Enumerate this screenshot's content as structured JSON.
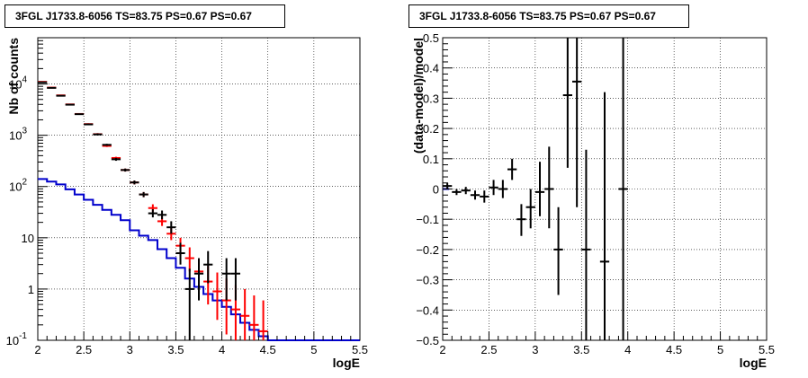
{
  "chart_data": [
    {
      "type": "histogram",
      "title": "3FGL J1733.8-6056 TS=83.75 PS=0.67 PS=0.67",
      "xlabel": "logE",
      "ylabel": "Nb of counts",
      "xlim": [
        2,
        5.5
      ],
      "ylim": [
        0.1,
        80000
      ],
      "yscale": "log",
      "grid": true,
      "xticks": [
        "2",
        "2.5",
        "3",
        "3.5",
        "4",
        "4.5",
        "5",
        "5.5"
      ],
      "yticks": [
        {
          "v": 0.1,
          "label": "10",
          "sup": "-1"
        },
        {
          "v": 1,
          "label": "1",
          "sup": ""
        },
        {
          "v": 10,
          "label": "10",
          "sup": ""
        },
        {
          "v": 100,
          "label": "10",
          "sup": "2"
        },
        {
          "v": 1000,
          "label": "10",
          "sup": "3"
        },
        {
          "v": 10000,
          "label": "10",
          "sup": "4"
        }
      ],
      "series": [
        {
          "color": "#0000cc",
          "kind": "step",
          "edges": [
            2.0,
            2.1,
            2.2,
            2.3,
            2.4,
            2.5,
            2.6,
            2.7,
            2.8,
            2.9,
            3.0,
            3.1,
            3.2,
            3.3,
            3.4,
            3.5,
            3.6,
            3.7,
            3.8,
            3.9,
            4.0,
            4.1,
            4.2,
            4.3,
            4.4,
            4.5,
            5.5
          ],
          "values": [
            140,
            125,
            110,
            88,
            70,
            55,
            44,
            35,
            28,
            22,
            14,
            11,
            9,
            6,
            4,
            2.6,
            1.6,
            1.1,
            0.8,
            0.6,
            0.45,
            0.32,
            0.22,
            0.16,
            0.12,
            0.1
          ]
        },
        {
          "color": "#ff0000",
          "kind": "errorbar",
          "points": [
            {
              "x": 2.05,
              "y": 11000,
              "lo": 10800,
              "hi": 11200
            },
            {
              "x": 2.15,
              "y": 8500,
              "lo": 8350,
              "hi": 8650
            },
            {
              "x": 2.25,
              "y": 6000,
              "lo": 5880,
              "hi": 6120
            },
            {
              "x": 2.35,
              "y": 4000,
              "lo": 3900,
              "hi": 4100
            },
            {
              "x": 2.45,
              "y": 2600,
              "lo": 2520,
              "hi": 2680
            },
            {
              "x": 2.55,
              "y": 1650,
              "lo": 1590,
              "hi": 1710
            },
            {
              "x": 2.65,
              "y": 1050,
              "lo": 1000,
              "hi": 1100
            },
            {
              "x": 2.75,
              "y": 620,
              "lo": 590,
              "hi": 650
            },
            {
              "x": 2.85,
              "y": 360,
              "lo": 340,
              "hi": 380
            },
            {
              "x": 2.95,
              "y": 210,
              "lo": 196,
              "hi": 224
            },
            {
              "x": 3.05,
              "y": 120,
              "lo": 110,
              "hi": 131
            },
            {
              "x": 3.15,
              "y": 70,
              "lo": 62,
              "hi": 78
            },
            {
              "x": 3.25,
              "y": 38,
              "lo": 32,
              "hi": 45
            },
            {
              "x": 3.35,
              "y": 21,
              "lo": 17,
              "hi": 26
            },
            {
              "x": 3.45,
              "y": 12,
              "lo": 9,
              "hi": 16
            },
            {
              "x": 3.55,
              "y": 7,
              "lo": 4.5,
              "hi": 10
            },
            {
              "x": 3.65,
              "y": 4,
              "lo": 2.2,
              "hi": 6.5
            },
            {
              "x": 3.75,
              "y": 2.2,
              "lo": 1.0,
              "hi": 4.0
            },
            {
              "x": 3.85,
              "y": 1.4,
              "lo": 0.5,
              "hi": 2.8
            },
            {
              "x": 3.95,
              "y": 0.9,
              "lo": 0.25,
              "hi": 2.1
            },
            {
              "x": 4.05,
              "y": 0.6,
              "lo": 0.13,
              "hi": 1.6
            },
            {
              "x": 4.15,
              "y": 0.4,
              "lo": 0.1,
              "hi": 1.2
            },
            {
              "x": 4.25,
              "y": 0.3,
              "lo": 0.1,
              "hi": 1.0
            },
            {
              "x": 4.35,
              "y": 0.2,
              "lo": 0.1,
              "hi": 0.75
            },
            {
              "x": 4.45,
              "y": 0.15,
              "lo": 0.1,
              "hi": 0.6
            }
          ]
        },
        {
          "color": "#000000",
          "kind": "errorbar",
          "points": [
            {
              "x": 2.05,
              "y": 10800,
              "lo": 10600,
              "hi": 11000
            },
            {
              "x": 2.15,
              "y": 8400,
              "lo": 8250,
              "hi": 8550
            },
            {
              "x": 2.25,
              "y": 5900,
              "lo": 5780,
              "hi": 6020
            },
            {
              "x": 2.35,
              "y": 3950,
              "lo": 3850,
              "hi": 4050
            },
            {
              "x": 2.45,
              "y": 2580,
              "lo": 2500,
              "hi": 2660
            },
            {
              "x": 2.55,
              "y": 1630,
              "lo": 1570,
              "hi": 1690
            },
            {
              "x": 2.65,
              "y": 1040,
              "lo": 990,
              "hi": 1090
            },
            {
              "x": 2.75,
              "y": 650,
              "lo": 620,
              "hi": 680
            },
            {
              "x": 2.85,
              "y": 340,
              "lo": 318,
              "hi": 362
            },
            {
              "x": 2.95,
              "y": 210,
              "lo": 196,
              "hi": 224
            },
            {
              "x": 3.05,
              "y": 120,
              "lo": 110,
              "hi": 131
            },
            {
              "x": 3.15,
              "y": 70,
              "lo": 62,
              "hi": 78
            },
            {
              "x": 3.25,
              "y": 30,
              "lo": 25,
              "hi": 36
            },
            {
              "x": 3.35,
              "y": 28,
              "lo": 23,
              "hi": 34
            },
            {
              "x": 3.45,
              "y": 16,
              "lo": 12,
              "hi": 21
            },
            {
              "x": 3.55,
              "y": 5,
              "lo": 3,
              "hi": 8
            },
            {
              "x": 3.65,
              "y": 1,
              "lo": 0.1,
              "hi": 2.5
            },
            {
              "x": 3.75,
              "y": 2,
              "lo": 0.6,
              "hi": 4
            },
            {
              "x": 3.85,
              "y": 3,
              "lo": 1.3,
              "hi": 5.5
            },
            {
              "x": 4.05,
              "y": 2,
              "lo": 0.6,
              "hi": 4
            },
            {
              "x": 4.15,
              "y": 2,
              "lo": 0.6,
              "hi": 4
            }
          ]
        }
      ]
    },
    {
      "type": "errorbar",
      "title": "3FGL J1733.8-6056 TS=83.75 PS=0.67 PS=0.67",
      "xlabel": "logE",
      "ylabel": "(data-model)/model",
      "xlim": [
        2,
        5.5
      ],
      "ylim": [
        -0.5,
        0.5
      ],
      "yscale": "linear",
      "grid": true,
      "xticks": [
        "2",
        "2.5",
        "3",
        "3.5",
        "4",
        "4.5",
        "5",
        "5.5"
      ],
      "yticks": [
        "-0.5",
        "-0.4",
        "-0.3",
        "-0.2",
        "-0.1",
        "0",
        "0.1",
        "0.2",
        "0.3",
        "0.4",
        "0.5"
      ],
      "series": [
        {
          "color": "#0000cc",
          "kind": "line",
          "x": [
            2.0,
            2.07
          ],
          "y": [
            0.0,
            0.0
          ]
        },
        {
          "color": "#000000",
          "kind": "errorbar",
          "points": [
            {
              "x": 2.05,
              "y": 0.01,
              "lo": 0.0,
              "hi": 0.02
            },
            {
              "x": 2.15,
              "y": -0.01,
              "lo": -0.02,
              "hi": 0.0
            },
            {
              "x": 2.25,
              "y": -0.005,
              "lo": -0.017,
              "hi": 0.007
            },
            {
              "x": 2.35,
              "y": -0.02,
              "lo": -0.035,
              "hi": -0.005
            },
            {
              "x": 2.45,
              "y": -0.025,
              "lo": -0.045,
              "hi": -0.005
            },
            {
              "x": 2.55,
              "y": 0.005,
              "lo": -0.02,
              "hi": 0.03
            },
            {
              "x": 2.65,
              "y": 0.0,
              "lo": -0.03,
              "hi": 0.03
            },
            {
              "x": 2.75,
              "y": 0.065,
              "lo": 0.03,
              "hi": 0.1
            },
            {
              "x": 2.85,
              "y": -0.1,
              "lo": -0.155,
              "hi": -0.05
            },
            {
              "x": 2.95,
              "y": -0.06,
              "lo": -0.13,
              "hi": 0.0
            },
            {
              "x": 3.05,
              "y": -0.01,
              "lo": -0.09,
              "hi": 0.09
            },
            {
              "x": 3.15,
              "y": 0.0,
              "lo": -0.13,
              "hi": 0.14
            },
            {
              "x": 3.25,
              "y": -0.2,
              "lo": -0.35,
              "hi": -0.06
            },
            {
              "x": 3.35,
              "y": 0.31,
              "lo": 0.07,
              "hi": 0.5
            },
            {
              "x": 3.45,
              "y": 0.355,
              "lo": -0.06,
              "hi": 0.5
            },
            {
              "x": 3.55,
              "y": -0.2,
              "lo": -0.5,
              "hi": 0.13
            },
            {
              "x": 3.75,
              "y": -0.24,
              "lo": -0.5,
              "hi": 0.32
            },
            {
              "x": 3.95,
              "y": 0.0,
              "lo": -0.5,
              "hi": 0.5
            }
          ]
        }
      ]
    }
  ]
}
